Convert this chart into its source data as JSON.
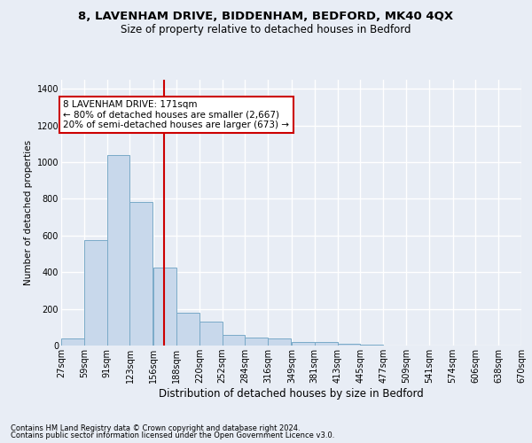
{
  "title1": "8, LAVENHAM DRIVE, BIDDENHAM, BEDFORD, MK40 4QX",
  "title2": "Size of property relative to detached houses in Bedford",
  "xlabel": "Distribution of detached houses by size in Bedford",
  "ylabel": "Number of detached properties",
  "footer1": "Contains HM Land Registry data © Crown copyright and database right 2024.",
  "footer2": "Contains public sector information licensed under the Open Government Licence v3.0.",
  "annotation_line1": "8 LAVENHAM DRIVE: 171sqm",
  "annotation_line2": "← 80% of detached houses are smaller (2,667)",
  "annotation_line3": "20% of semi-detached houses are larger (673) →",
  "bar_color": "#c8d8eb",
  "bar_edge_color": "#7aaac8",
  "redline_color": "#cc0000",
  "redline_x": 171,
  "bins": [
    27,
    59,
    91,
    123,
    156,
    188,
    220,
    252,
    284,
    316,
    349,
    381,
    413,
    445,
    477,
    509,
    541,
    574,
    606,
    638,
    670
  ],
  "heights": [
    40,
    575,
    1040,
    785,
    425,
    180,
    130,
    60,
    45,
    40,
    20,
    20,
    10,
    5,
    2,
    2,
    1,
    0,
    0,
    0
  ],
  "ylim": [
    0,
    1450
  ],
  "yticks": [
    0,
    200,
    400,
    600,
    800,
    1000,
    1200,
    1400
  ],
  "tick_labels": [
    "27sqm",
    "59sqm",
    "91sqm",
    "123sqm",
    "156sqm",
    "188sqm",
    "220sqm",
    "252sqm",
    "284sqm",
    "316sqm",
    "349sqm",
    "381sqm",
    "413sqm",
    "445sqm",
    "477sqm",
    "509sqm",
    "541sqm",
    "574sqm",
    "606sqm",
    "638sqm",
    "670sqm"
  ],
  "bg_color": "#e8edf5",
  "plot_bg_color": "#e8edf5",
  "annotation_box_color": "#ffffff",
  "annotation_box_edge": "#cc0000",
  "grid_color": "#ffffff",
  "title1_fontsize": 9.5,
  "title2_fontsize": 8.5,
  "xlabel_fontsize": 8.5,
  "ylabel_fontsize": 7.5,
  "tick_fontsize": 7,
  "footer_fontsize": 6,
  "annot_fontsize": 7.5
}
